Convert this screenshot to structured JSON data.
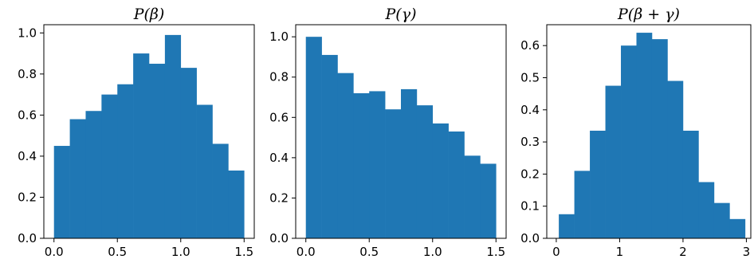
{
  "chart_data": [
    {
      "type": "bar",
      "title": "P(β)",
      "xlabel": "",
      "ylabel": "",
      "xlim": [
        -0.08,
        1.58
      ],
      "ylim": [
        0,
        1.04
      ],
      "xticks": [
        "0.0",
        "0.5",
        "1.0",
        "1.5"
      ],
      "xtick_values": [
        0,
        0.5,
        1.0,
        1.5
      ],
      "yticks": [
        "0.0",
        "0.2",
        "0.4",
        "0.6",
        "0.8",
        "1.0"
      ],
      "ytick_values": [
        0,
        0.2,
        0.4,
        0.6,
        0.8,
        1.0
      ],
      "bin_edges": [
        0.0,
        0.125,
        0.25,
        0.375,
        0.5,
        0.625,
        0.75,
        0.875,
        1.0,
        1.125,
        1.25,
        1.375,
        1.5
      ],
      "values": [
        0.45,
        0.58,
        0.62,
        0.7,
        0.75,
        0.9,
        0.85,
        0.99,
        0.83,
        0.65,
        0.46,
        0.33
      ],
      "color": "#1f77b4",
      "grid": false
    },
    {
      "type": "bar",
      "title": "P(γ)",
      "xlabel": "",
      "ylabel": "",
      "xlim": [
        -0.08,
        1.58
      ],
      "ylim": [
        0,
        1.06
      ],
      "xticks": [
        "0.0",
        "0.5",
        "1.0",
        "1.5"
      ],
      "xtick_values": [
        0,
        0.5,
        1.0,
        1.5
      ],
      "yticks": [
        "0.0",
        "0.2",
        "0.4",
        "0.6",
        "0.8",
        "1.0"
      ],
      "ytick_values": [
        0,
        0.2,
        0.4,
        0.6,
        0.8,
        1.0
      ],
      "bin_edges": [
        0.0,
        0.125,
        0.25,
        0.375,
        0.5,
        0.625,
        0.75,
        0.875,
        1.0,
        1.125,
        1.25,
        1.375,
        1.5
      ],
      "values": [
        1.0,
        0.91,
        0.82,
        0.72,
        0.73,
        0.64,
        0.74,
        0.66,
        0.57,
        0.53,
        0.41,
        0.37
      ],
      "color": "#1f77b4",
      "grid": false
    },
    {
      "type": "bar",
      "title": "P(β + γ)",
      "xlabel": "",
      "ylabel": "",
      "xlim": [
        -0.15,
        3.07
      ],
      "ylim": [
        0,
        0.665
      ],
      "xticks": [
        "0",
        "1",
        "2",
        "3"
      ],
      "xtick_values": [
        0,
        1,
        2,
        3
      ],
      "yticks": [
        "0.0",
        "0.1",
        "0.2",
        "0.3",
        "0.4",
        "0.5",
        "0.6"
      ],
      "ytick_values": [
        0,
        0.1,
        0.2,
        0.3,
        0.4,
        0.5,
        0.6
      ],
      "bin_edges": [
        0.04,
        0.285,
        0.53,
        0.775,
        1.02,
        1.265,
        1.51,
        1.755,
        2.0,
        2.245,
        2.49,
        2.735,
        2.98
      ],
      "values": [
        0.075,
        0.21,
        0.335,
        0.475,
        0.6,
        0.64,
        0.62,
        0.49,
        0.335,
        0.175,
        0.11,
        0.06
      ],
      "color": "#1f77b4",
      "grid": false
    }
  ]
}
